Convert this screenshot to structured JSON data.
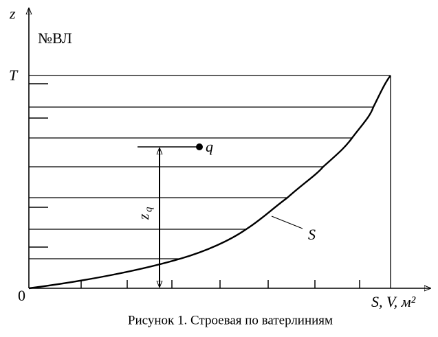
{
  "labels": {
    "z_axis": "z",
    "waterline_no": "№ВЛ",
    "draft": "T",
    "load": "q",
    "zq_main": "z",
    "zq_sub": "q",
    "curve": "S",
    "origin": "0",
    "x_axis": "S, V, м²"
  },
  "caption": "Рисунок 1. Строевая по ватерлиниям"
}
